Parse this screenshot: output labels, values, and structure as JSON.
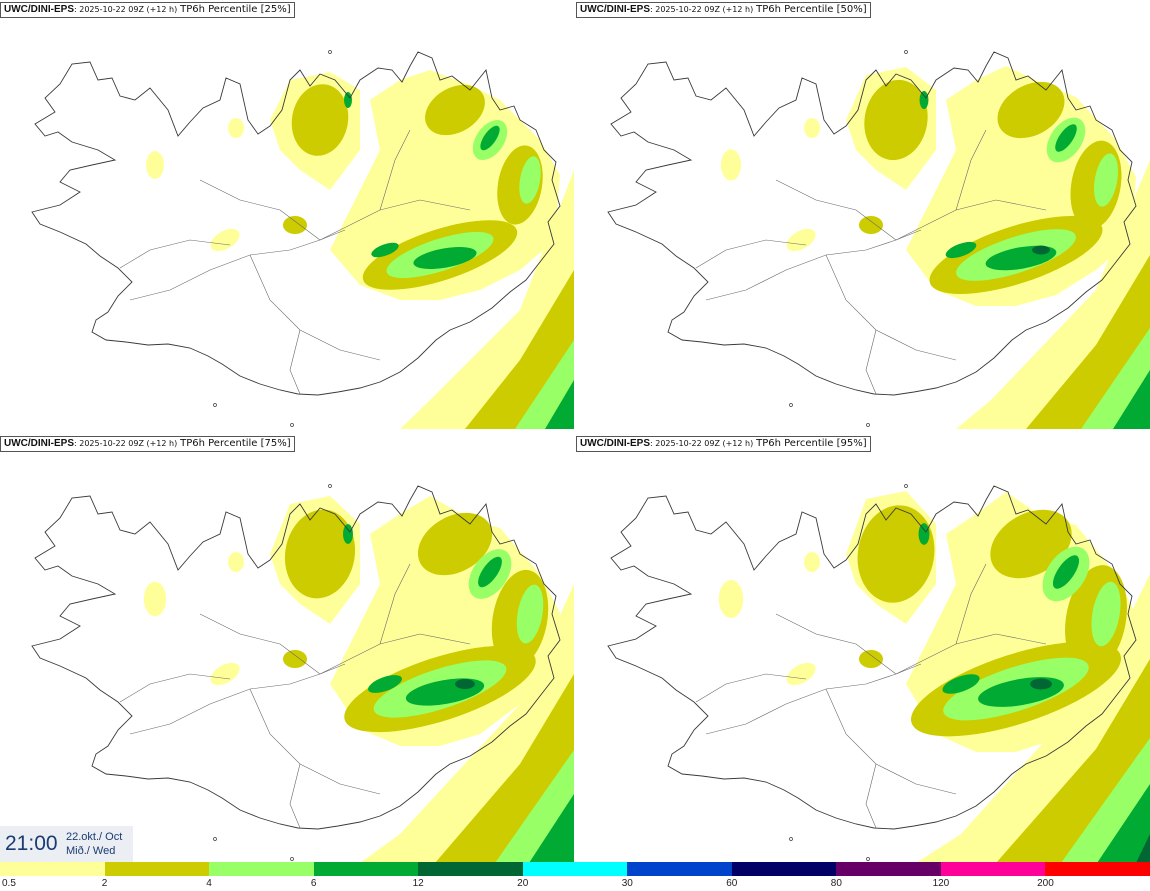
{
  "panels": [
    {
      "model": "UWC/DINI-EPS",
      "run": ": 2025-10-22 09Z (+12 h)",
      "field": "TP6h Percentile [25%]",
      "percentile": 25
    },
    {
      "model": "UWC/DINI-EPS",
      "run": ": 2025-10-22 09Z (+12 h)",
      "field": "TP6h Percentile [50%]",
      "percentile": 50
    },
    {
      "model": "UWC/DINI-EPS",
      "run": ": 2025-10-22 09Z (+12 h)",
      "field": "TP6h Percentile [75%]",
      "percentile": 75
    },
    {
      "model": "UWC/DINI-EPS",
      "run": ": 2025-10-22 09Z (+12 h)",
      "field": "TP6h Percentile [95%]",
      "percentile": 95
    }
  ],
  "valid_time": {
    "time": "21:00",
    "date": "22.okt./ Oct",
    "weekday": "Mið./ Wed"
  },
  "legend": {
    "levels": [
      "0.5",
      "2",
      "4",
      "6",
      "12",
      "20",
      "30",
      "60",
      "80",
      "120",
      "200"
    ],
    "colors": [
      "#ffff99",
      "#cccc00",
      "#99ff66",
      "#00aa33",
      "#006633",
      "#00ffff",
      "#0044cc",
      "#000066",
      "#660066",
      "#ff0099",
      "#ff0000"
    ]
  }
}
